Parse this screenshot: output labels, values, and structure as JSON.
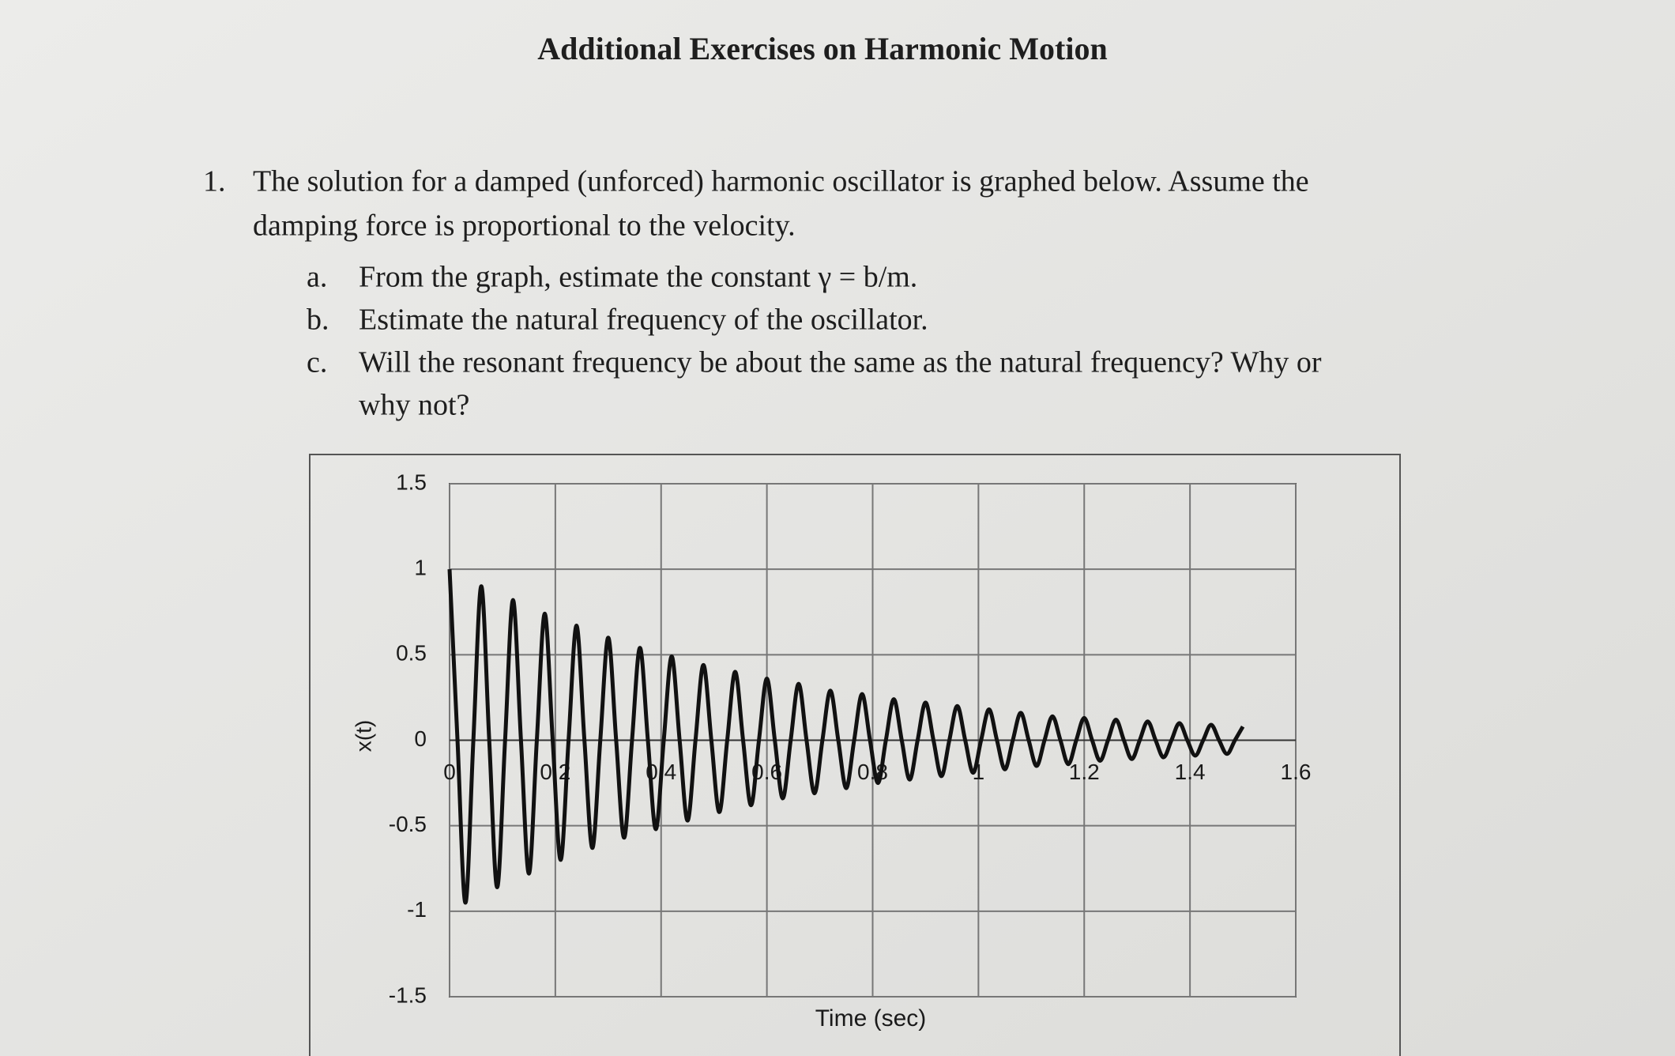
{
  "header": {
    "title": "Additional Exercises on Harmonic Motion"
  },
  "question": {
    "number": "1.",
    "lines": [
      "The solution for a damped (unforced) harmonic oscillator is graphed below. Assume the",
      "damping force is proportional to the velocity."
    ]
  },
  "parts": [
    {
      "label": "a.",
      "lines": [
        "From the graph, estimate the constant γ = b/m."
      ]
    },
    {
      "label": "b.",
      "lines": [
        "Estimate the natural frequency of the oscillator."
      ]
    },
    {
      "label": "c.",
      "lines": [
        "Will the resonant frequency be about the same as the natural frequency? Why or",
        "why not?"
      ]
    }
  ],
  "chart_data": {
    "type": "line",
    "xlabel": "Time (sec)",
    "ylabel": "x(t)",
    "color": "#111111",
    "grid": true,
    "xlim": [
      0,
      1.6
    ],
    "xticks": [
      0,
      0.2,
      0.4,
      0.6,
      0.8,
      1,
      1.2,
      1.4,
      1.6
    ],
    "ylim": [
      -1.5,
      1.5
    ],
    "yticks": [
      1.5,
      1,
      0.5,
      0,
      -0.5,
      -1,
      -1.5
    ],
    "x": [
      0,
      0.015,
      0.03,
      0.045,
      0.06,
      0.075,
      0.09,
      0.105,
      0.12,
      0.135,
      0.15,
      0.165,
      0.18,
      0.195,
      0.21,
      0.225,
      0.24,
      0.255,
      0.27,
      0.285,
      0.3,
      0.315,
      0.33,
      0.345,
      0.36,
      0.375,
      0.39,
      0.405,
      0.42,
      0.435,
      0.45,
      0.465,
      0.48,
      0.495,
      0.51,
      0.525,
      0.54,
      0.555,
      0.57,
      0.585,
      0.6,
      0.615,
      0.63,
      0.645,
      0.66,
      0.675,
      0.69,
      0.705,
      0.72,
      0.735,
      0.75,
      0.765,
      0.78,
      0.795,
      0.81,
      0.825,
      0.84,
      0.855,
      0.87,
      0.885,
      0.9,
      0.915,
      0.93,
      0.945,
      0.96,
      0.975,
      0.99,
      1.005,
      1.02,
      1.035,
      1.05,
      1.065,
      1.08,
      1.095,
      1.11,
      1.125,
      1.14,
      1.155,
      1.17,
      1.185,
      1.2,
      1.215,
      1.23,
      1.245,
      1.26,
      1.275,
      1.29,
      1.305,
      1.32,
      1.335,
      1.35,
      1.365,
      1.38,
      1.395,
      1.41,
      1.425,
      1.44,
      1.455,
      1.47,
      1.485,
      1.5
    ],
    "values": [
      1,
      0,
      -0.95,
      0,
      0.9,
      0,
      -0.86,
      0,
      0.82,
      0,
      -0.78,
      0,
      0.74,
      0,
      -0.7,
      0,
      0.67,
      0,
      -0.63,
      0,
      0.6,
      0,
      -0.57,
      0,
      0.54,
      0,
      -0.52,
      0,
      0.49,
      0,
      -0.47,
      0,
      0.44,
      0,
      -0.42,
      0,
      0.4,
      0,
      -0.38,
      0,
      0.36,
      0,
      -0.34,
      0,
      0.33,
      0,
      -0.31,
      0,
      0.29,
      0,
      -0.28,
      0,
      0.27,
      0,
      -0.25,
      0,
      0.24,
      0,
      -0.23,
      0,
      0.22,
      0,
      -0.21,
      0,
      0.2,
      0,
      -0.19,
      0,
      0.18,
      0,
      -0.17,
      0,
      0.16,
      0,
      -0.15,
      0,
      0.14,
      0,
      -0.14,
      0,
      0.13,
      0,
      -0.12,
      0,
      0.12,
      0,
      -0.11,
      0,
      0.11,
      0,
      -0.1,
      0,
      0.1,
      0,
      -0.09,
      0,
      0.09,
      0,
      -0.08,
      0,
      0.08
    ]
  }
}
